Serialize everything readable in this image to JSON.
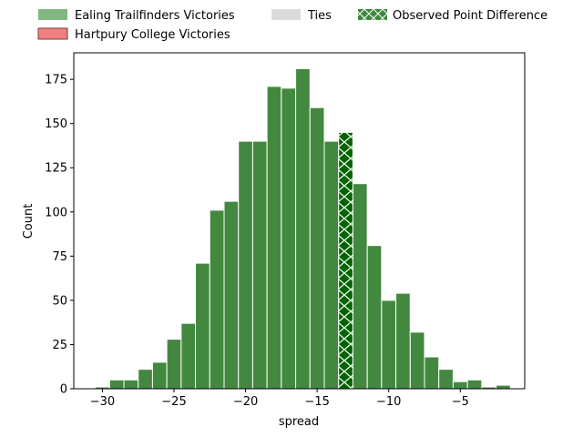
{
  "chart_data": {
    "type": "bar",
    "xlabel": "spread",
    "ylabel": "Count",
    "xlim": [
      -32,
      -0.5
    ],
    "ylim": [
      0,
      190
    ],
    "xticks": [
      -30,
      -25,
      -20,
      -15,
      -10,
      -5
    ],
    "yticks": [
      0,
      25,
      50,
      75,
      100,
      125,
      150,
      175
    ],
    "xtick_labels": [
      "−30",
      "−25",
      "−20",
      "−15",
      "−10",
      "−5"
    ],
    "ytick_labels": [
      "0",
      "25",
      "50",
      "75",
      "100",
      "125",
      "150",
      "175"
    ],
    "bin_width": 1,
    "bins": [
      {
        "x": -30,
        "count": 1
      },
      {
        "x": -29,
        "count": 5
      },
      {
        "x": -28,
        "count": 5
      },
      {
        "x": -27,
        "count": 11
      },
      {
        "x": -26,
        "count": 15
      },
      {
        "x": -25,
        "count": 28
      },
      {
        "x": -24,
        "count": 37
      },
      {
        "x": -23,
        "count": 71
      },
      {
        "x": -22,
        "count": 101
      },
      {
        "x": -21,
        "count": 106
      },
      {
        "x": -20,
        "count": 140
      },
      {
        "x": -19,
        "count": 140
      },
      {
        "x": -18,
        "count": 171
      },
      {
        "x": -17,
        "count": 170
      },
      {
        "x": -16,
        "count": 181
      },
      {
        "x": -15,
        "count": 159
      },
      {
        "x": -14,
        "count": 140
      },
      {
        "x": -13,
        "count": 145,
        "observed": true
      },
      {
        "x": -12,
        "count": 116
      },
      {
        "x": -11,
        "count": 81
      },
      {
        "x": -10,
        "count": 50
      },
      {
        "x": -9,
        "count": 54
      },
      {
        "x": -8,
        "count": 32
      },
      {
        "x": -7,
        "count": 18
      },
      {
        "x": -6,
        "count": 11
      },
      {
        "x": -5,
        "count": 4
      },
      {
        "x": -4,
        "count": 5
      },
      {
        "x": -3,
        "count": 1
      },
      {
        "x": -2,
        "count": 2
      }
    ],
    "legend": {
      "placement": "top",
      "entries": [
        {
          "label": "Ealing Trailfinders Victories",
          "color": "#80b97f"
        },
        {
          "label": "Ties",
          "color": "#dcdcdc"
        },
        {
          "label": "Observed Point Difference",
          "color": "#3f883f"
        },
        {
          "label": "Hartpury College Victories",
          "color": "#f08080"
        }
      ]
    },
    "colors": {
      "bar": "#42883f",
      "observed_bar": "#006400",
      "bar_edge": "#ffffff"
    },
    "grid": false
  }
}
